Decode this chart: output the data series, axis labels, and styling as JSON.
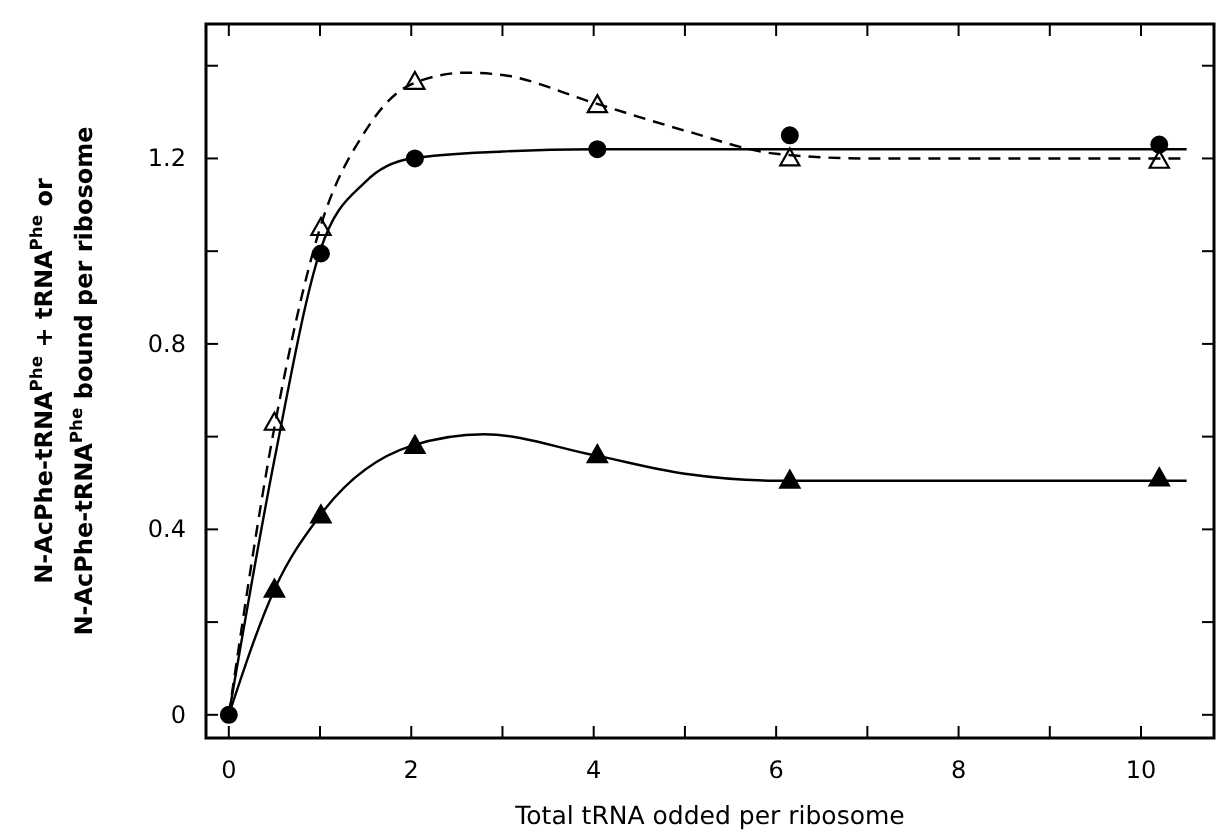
{
  "chart_data": {
    "type": "line",
    "xlabel": "Total tRNA odded per ribosome",
    "ylabel": "N-AcPhe-tRNA$^{Phe}$ + tRNA$^{Phe}$ or\nN-AcPhe-tRNA$^{Phe}$ bound per ribosome",
    "xlim": [
      -0.25,
      10.8
    ],
    "ylim": [
      -0.05,
      1.49
    ],
    "xticks": [
      0,
      {
        "value": 1,
        "label": null
      },
      2,
      {
        "value": 3,
        "label": null
      },
      4,
      {
        "value": 5,
        "label": null
      },
      6,
      {
        "value": 7,
        "label": null
      },
      8,
      {
        "value": 9,
        "label": null
      },
      10
    ],
    "yticks": [
      0,
      {
        "value": 0.2,
        "label": null
      },
      0.4,
      {
        "value": 0.6,
        "label": null
      },
      0.8,
      {
        "value": 1.0,
        "label": null
      },
      1.2,
      {
        "value": 1.4,
        "label": null
      }
    ],
    "grid": false,
    "series": [
      {
        "type": "scatter",
        "marker": "triangle",
        "color": "#ffffff",
        "x": [
          0.5,
          1.01,
          2.04,
          4.04,
          6.15,
          10.2
        ],
        "values": [
          0.63,
          1.05,
          1.365,
          1.315,
          1.2,
          1.195
        ]
      },
      {
        "type": "scatter",
        "marker": "circle",
        "color": "#000000",
        "x": [
          0,
          1.01,
          2.04,
          4.04,
          6.15,
          10.2
        ],
        "values": [
          0,
          0.995,
          1.2,
          1.22,
          1.25,
          1.23
        ]
      },
      {
        "type": "scatter",
        "marker": "triangle",
        "color": "#000000",
        "x": [
          0.5,
          1.01,
          2.04,
          4.04,
          6.15,
          10.2
        ],
        "values": [
          0.27,
          0.43,
          0.58,
          0.56,
          0.505,
          0.51
        ]
      },
      {
        "line_style": "dashed",
        "color": "#000000",
        "x": [
          0,
          0.5,
          1,
          1.5,
          2,
          2.6,
          3,
          4,
          5,
          6,
          7,
          8,
          10.5
        ],
        "values": [
          0,
          0.62,
          1.05,
          1.26,
          1.36,
          1.385,
          1.38,
          1.32,
          1.26,
          1.21,
          1.2,
          1.2,
          1.2
        ]
      },
      {
        "line_style": "solid",
        "color": "#000000",
        "x": [
          0,
          0.5,
          1,
          1.5,
          2,
          3,
          4,
          6,
          10.5
        ],
        "values": [
          0,
          0.55,
          1.0,
          1.15,
          1.2,
          1.215,
          1.22,
          1.22,
          1.22
        ]
      },
      {
        "line_style": "solid",
        "color": "#000000",
        "x": [
          0,
          0.5,
          1,
          2,
          2.8,
          4,
          5,
          6,
          8,
          10.5
        ],
        "values": [
          0,
          0.27,
          0.43,
          0.58,
          0.605,
          0.56,
          0.52,
          0.505,
          0.505,
          0.505
        ]
      }
    ]
  }
}
